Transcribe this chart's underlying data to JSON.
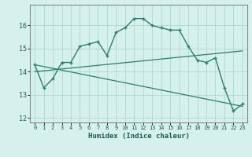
{
  "title": "",
  "xlabel": "Humidex (Indice chaleur)",
  "bg_color": "#d6f0eb",
  "line_color": "#2e7d6e",
  "grid_color": "#aed8d0",
  "spine_color": "#888888",
  "xlim": [
    -0.5,
    23.5
  ],
  "ylim": [
    11.8,
    16.9
  ],
  "yticks": [
    12,
    13,
    14,
    15,
    16
  ],
  "xticks": [
    0,
    1,
    2,
    3,
    4,
    5,
    6,
    7,
    8,
    9,
    10,
    11,
    12,
    13,
    14,
    15,
    16,
    17,
    18,
    19,
    20,
    21,
    22,
    23
  ],
  "line1_x": [
    0,
    1,
    2,
    3,
    4,
    5,
    6,
    7,
    8,
    9,
    10,
    11,
    12,
    13,
    14,
    15,
    16,
    17,
    18,
    19,
    20,
    21,
    22,
    23
  ],
  "line1_y": [
    14.3,
    13.3,
    13.7,
    14.4,
    14.4,
    15.1,
    15.2,
    15.3,
    14.7,
    15.7,
    15.9,
    16.3,
    16.3,
    16.0,
    15.9,
    15.8,
    15.8,
    15.1,
    14.5,
    14.4,
    14.6,
    13.3,
    12.3,
    12.6
  ],
  "line2_x": [
    0,
    23
  ],
  "line2_y": [
    14.0,
    14.9
  ],
  "line3_x": [
    0,
    23
  ],
  "line3_y": [
    14.3,
    12.5
  ]
}
